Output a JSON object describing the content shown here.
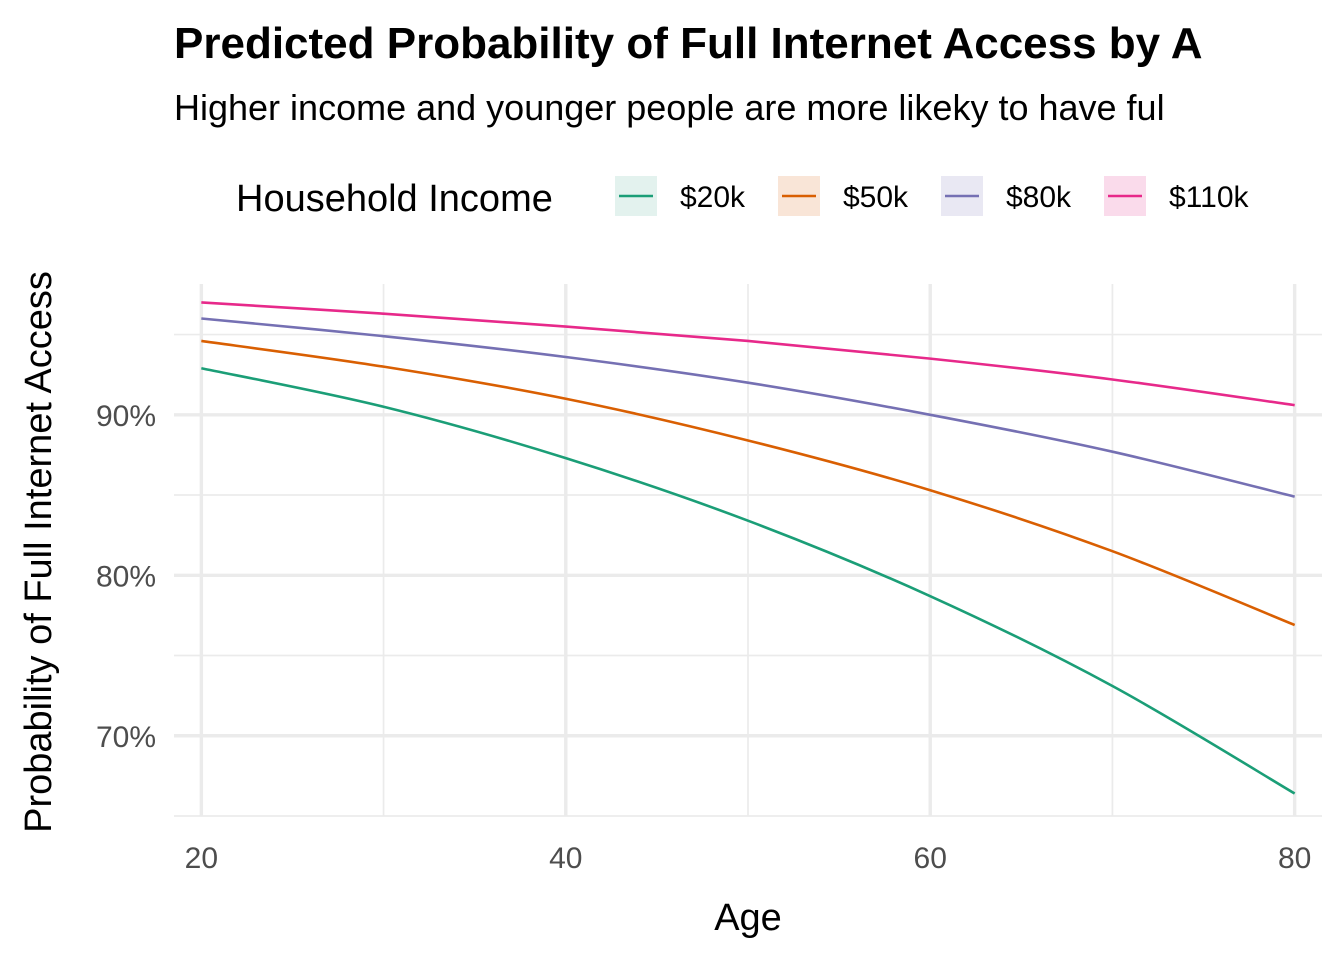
{
  "chart_data": {
    "type": "line",
    "title": "Predicted Probability of Full Internet Access by A",
    "subtitle": "Higher income and younger people are more likeky to have ful",
    "xlabel": "Age",
    "ylabel": "Probability of Full Internet Access",
    "xlim": [
      18.5,
      81.5
    ],
    "ylim": [
      0.65,
      0.9815
    ],
    "x_ticks": [
      20,
      40,
      60,
      80
    ],
    "x_minor_ticks": [
      30,
      50,
      70
    ],
    "y_ticks": [
      0.7,
      0.8,
      0.9
    ],
    "y_tick_labels": [
      "70%",
      "80%",
      "90%"
    ],
    "y_minor_ticks": [
      0.65,
      0.75,
      0.85,
      0.95
    ],
    "grid": true,
    "legend": {
      "title": "Household Income",
      "position": "top"
    },
    "x": [
      20,
      30,
      40,
      50,
      60,
      70,
      80
    ],
    "series": [
      {
        "name": "$20k",
        "color": "#1b9e77",
        "fill": "#e3f2ee",
        "values": [
          0.929,
          0.905,
          0.873,
          0.834,
          0.787,
          0.731,
          0.664
        ]
      },
      {
        "name": "$50k",
        "color": "#d95f02",
        "fill": "#f9e5d7",
        "values": [
          0.946,
          0.93,
          0.91,
          0.884,
          0.853,
          0.815,
          0.769
        ]
      },
      {
        "name": "$80k",
        "color": "#7570b3",
        "fill": "#e9e8f3",
        "values": [
          0.96,
          0.949,
          0.936,
          0.92,
          0.9,
          0.877,
          0.849
        ]
      },
      {
        "name": "$110k",
        "color": "#e7298a",
        "fill": "#fadbeb",
        "values": [
          0.97,
          0.963,
          0.955,
          0.946,
          0.935,
          0.922,
          0.906
        ]
      }
    ]
  }
}
